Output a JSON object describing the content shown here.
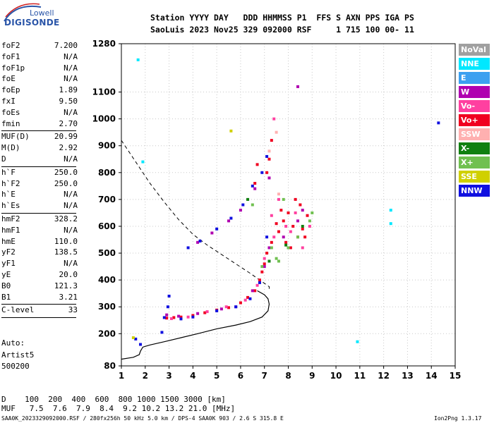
{
  "logo": {
    "top": "Lowell",
    "main": "DIGISONDE"
  },
  "header": {
    "line1": "Station YYYY DAY   DDD HHMMSS P1  FFS S AXN PPS IGA PS",
    "line2": "SaoLuis 2023 Nov25 329 092000 RSF     1 715 100 00- 11"
  },
  "params": [
    {
      "label": "foF2",
      "value": "7.200"
    },
    {
      "label": "foF1",
      "value": "N/A"
    },
    {
      "label": "foF1p",
      "value": "N/A"
    },
    {
      "label": "foE",
      "value": "N/A"
    },
    {
      "label": "foEp",
      "value": "1.89"
    },
    {
      "label": "fxI",
      "value": "9.50"
    },
    {
      "label": "foEs",
      "value": "N/A"
    },
    {
      "label": "fmin",
      "value": "2.70"
    },
    {
      "label": "MUF(D)",
      "value": "20.99"
    },
    {
      "label": "M(D)",
      "value": "2.92"
    },
    {
      "label": "D",
      "value": "N/A"
    },
    {
      "label": "h`F",
      "value": "250.0"
    },
    {
      "label": "h`F2",
      "value": "250.0"
    },
    {
      "label": "h`E",
      "value": "N/A"
    },
    {
      "label": "h`Es",
      "value": "N/A"
    },
    {
      "label": "hmF2",
      "value": "328.2"
    },
    {
      "label": "hmF1",
      "value": "N/A"
    },
    {
      "label": "hmE",
      "value": "110.0"
    },
    {
      "label": "yF2",
      "value": "138.5"
    },
    {
      "label": "yF1",
      "value": "N/A"
    },
    {
      "label": "yE",
      "value": "20.0"
    },
    {
      "label": "B0",
      "value": "121.3"
    },
    {
      "label": "B1",
      "value": "3.21"
    },
    {
      "label": "C-level",
      "value": "33"
    }
  ],
  "auto": {
    "line1": "Auto:",
    "line2": "Artist5",
    "line3": "500200"
  },
  "footer": {
    "d_line": "D    100  200  400  600  800 1000 1500 3000 [km]",
    "muf_line": "MUF   7.5  7.6  7.9  8.4  9.2 10.2 13.2 21.0 [MHz]",
    "file_line": "SAA0K_2023329092000.RSF / 280fx256h 50 kHz 5.0 km / DPS-4 SAA0K 903 / 2.6 S 315.8 E",
    "version": "Ion2Png 1.3.17"
  },
  "legend": [
    {
      "label": "NoVal",
      "color": "#a0a0a0"
    },
    {
      "label": "NNE",
      "color": "#00e8ff"
    },
    {
      "label": "E",
      "color": "#3ca0f0"
    },
    {
      "label": "W",
      "color": "#b000b0"
    },
    {
      "label": "Vo-",
      "color": "#ff40a0"
    },
    {
      "label": "Vo+",
      "color": "#f00020"
    },
    {
      "label": "SSW",
      "color": "#ffb0b0"
    },
    {
      "label": "X-",
      "color": "#108010"
    },
    {
      "label": "X+",
      "color": "#70c050"
    },
    {
      "label": "SSE",
      "color": "#d0d000"
    },
    {
      "label": "NNW",
      "color": "#1010e0"
    }
  ],
  "chart_data": {
    "type": "scatter",
    "x_ticks": [
      1,
      2,
      3,
      4,
      5,
      6,
      7,
      8,
      9,
      10,
      11,
      12,
      13,
      14,
      15
    ],
    "y_ticks": [
      80,
      200,
      300,
      400,
      500,
      600,
      700,
      800,
      900,
      1000,
      1100,
      1280
    ],
    "xlim": [
      1,
      15
    ],
    "ylim": [
      80,
      1280
    ],
    "grid": true,
    "series": [
      {
        "name": "Vo+",
        "color": "#f00020",
        "points": [
          [
            2.9,
            258
          ],
          [
            3.2,
            260
          ],
          [
            3.5,
            262
          ],
          [
            4,
            268
          ],
          [
            4.5,
            278
          ],
          [
            5,
            288
          ],
          [
            5.5,
            297
          ],
          [
            6,
            315
          ],
          [
            6.3,
            335
          ],
          [
            6.6,
            360
          ],
          [
            6.8,
            400
          ],
          [
            6.9,
            430
          ],
          [
            7,
            460
          ],
          [
            7.1,
            500
          ],
          [
            7.3,
            540
          ],
          [
            7.6,
            580
          ],
          [
            7.8,
            620
          ],
          [
            8,
            650
          ],
          [
            8.2,
            600
          ],
          [
            8.4,
            560
          ],
          [
            8.6,
            590
          ],
          [
            8.8,
            640
          ],
          [
            7.5,
            610
          ],
          [
            7.9,
            540
          ],
          [
            8.1,
            520
          ],
          [
            8.5,
            680
          ],
          [
            8.3,
            700
          ],
          [
            7.7,
            660
          ],
          [
            8.7,
            560
          ],
          [
            7.1,
            800
          ],
          [
            7.2,
            850
          ],
          [
            7.3,
            920
          ],
          [
            6.7,
            830
          ],
          [
            6.6,
            760
          ]
        ]
      },
      {
        "name": "Vo-",
        "color": "#ff40a0",
        "points": [
          [
            3.1,
            256
          ],
          [
            3.8,
            262
          ],
          [
            4.6,
            282
          ],
          [
            5.4,
            300
          ],
          [
            6.2,
            325
          ],
          [
            6.7,
            380
          ],
          [
            7,
            480
          ],
          [
            7.4,
            560
          ],
          [
            7.9,
            600
          ],
          [
            8.3,
            650
          ],
          [
            8.6,
            520
          ],
          [
            8.9,
            600
          ],
          [
            7.6,
            700
          ],
          [
            8.1,
            580
          ],
          [
            7.3,
            640
          ],
          [
            7.4,
            1000
          ]
        ]
      },
      {
        "name": "W",
        "color": "#b000b0",
        "points": [
          [
            2.9,
            270
          ],
          [
            3.4,
            265
          ],
          [
            4.2,
            275
          ],
          [
            5.2,
            292
          ],
          [
            5.8,
            300
          ],
          [
            6.5,
            360
          ],
          [
            7,
            450
          ],
          [
            7.2,
            520
          ],
          [
            7.8,
            560
          ],
          [
            8.4,
            620
          ],
          [
            8.6,
            660
          ],
          [
            4.2,
            540
          ],
          [
            4.8,
            575
          ],
          [
            5.5,
            620
          ],
          [
            6,
            660
          ],
          [
            6.6,
            740
          ],
          [
            7.2,
            780
          ],
          [
            8.4,
            1120
          ]
        ]
      },
      {
        "name": "NNW",
        "color": "#1010e0",
        "points": [
          [
            2.95,
            300
          ],
          [
            3,
            340
          ],
          [
            2.8,
            260
          ],
          [
            3.5,
            255
          ],
          [
            4,
            262
          ],
          [
            5,
            285
          ],
          [
            5.8,
            300
          ],
          [
            6.4,
            330
          ],
          [
            6.8,
            390
          ],
          [
            7.1,
            560
          ],
          [
            3.8,
            520
          ],
          [
            4.3,
            545
          ],
          [
            5,
            590
          ],
          [
            5.6,
            630
          ],
          [
            6.1,
            680
          ],
          [
            6.5,
            750
          ],
          [
            6.9,
            800
          ],
          [
            7.1,
            860
          ],
          [
            1.8,
            160
          ],
          [
            1.6,
            180
          ],
          [
            2.7,
            205
          ],
          [
            14.3,
            985
          ]
        ]
      },
      {
        "name": "X+",
        "color": "#70c050",
        "points": [
          [
            6.9,
            450
          ],
          [
            7.3,
            520
          ],
          [
            7.5,
            480
          ],
          [
            8,
            520
          ],
          [
            8.4,
            560
          ],
          [
            8.9,
            620
          ],
          [
            9,
            650
          ],
          [
            7.8,
            700
          ],
          [
            6.5,
            680
          ],
          [
            7.6,
            470
          ]
        ]
      },
      {
        "name": "X-",
        "color": "#108010",
        "points": [
          [
            7.2,
            470
          ],
          [
            7.9,
            530
          ],
          [
            8.6,
            600
          ],
          [
            6.3,
            700
          ]
        ]
      },
      {
        "name": "NNE",
        "color": "#00e8ff",
        "points": [
          [
            1.7,
            1220
          ],
          [
            12.3,
            660
          ],
          [
            12.3,
            610
          ],
          [
            10.9,
            170
          ],
          [
            1.9,
            840
          ]
        ]
      },
      {
        "name": "SSW",
        "color": "#ffb0b0",
        "points": [
          [
            7.5,
            950
          ],
          [
            7.6,
            720
          ],
          [
            7.2,
            880
          ]
        ]
      },
      {
        "name": "SSE",
        "color": "#d0d000",
        "points": [
          [
            1.5,
            185
          ],
          [
            5.6,
            955
          ]
        ]
      }
    ],
    "profile_curve": [
      [
        1,
        105
      ],
      [
        1.5,
        112
      ],
      [
        1.75,
        122
      ],
      [
        1.8,
        135
      ],
      [
        1.9,
        150
      ],
      [
        2.2,
        158
      ],
      [
        2.8,
        170
      ],
      [
        3.5,
        185
      ],
      [
        4.2,
        200
      ],
      [
        5,
        218
      ],
      [
        5.8,
        232
      ],
      [
        6.4,
        245
      ],
      [
        6.9,
        262
      ],
      [
        7.15,
        285
      ],
      [
        7.2,
        310
      ],
      [
        7.15,
        330
      ],
      [
        7,
        345
      ],
      [
        6.7,
        360
      ]
    ],
    "muf_dashed_curve": [
      [
        1,
        920
      ],
      [
        1.6,
        840
      ],
      [
        2.2,
        760
      ],
      [
        2.8,
        690
      ],
      [
        3.4,
        625
      ],
      [
        4,
        570
      ],
      [
        4.6,
        530
      ],
      [
        5.2,
        495
      ],
      [
        5.8,
        460
      ],
      [
        6.4,
        425
      ],
      [
        6.8,
        400
      ],
      [
        7.2,
        375
      ],
      [
        7.2,
        360
      ]
    ]
  }
}
